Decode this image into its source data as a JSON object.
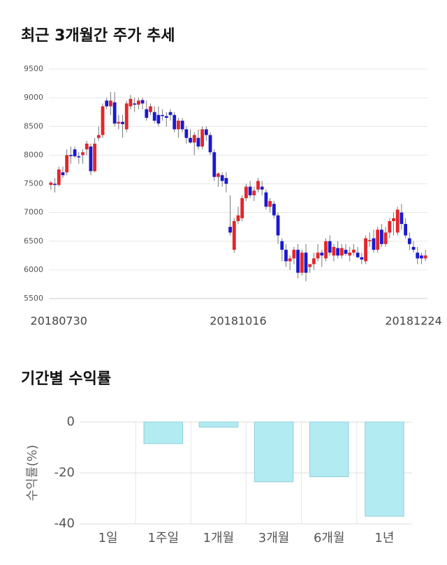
{
  "chart_data": [
    {
      "type": "candlestick",
      "title": "최근 3개월간 주가 추세",
      "categories": [
        null,
        null,
        "20180730",
        null,
        null,
        null,
        null,
        null,
        null,
        null,
        null,
        null,
        null,
        null,
        null,
        null,
        null,
        null,
        null,
        null,
        null,
        null,
        null,
        null,
        null,
        null,
        null,
        null,
        null,
        null,
        null,
        null,
        null,
        null,
        null,
        null,
        null,
        null,
        null,
        null,
        null,
        null,
        null,
        null,
        null,
        null,
        null,
        "20181016",
        null,
        null,
        null,
        null,
        null,
        null,
        null,
        null,
        null,
        null,
        null,
        null,
        null,
        null,
        null,
        null,
        null,
        null,
        null,
        null,
        null,
        null,
        null,
        null,
        null,
        null,
        null,
        null,
        null,
        null,
        null,
        null,
        null,
        null,
        null,
        null,
        null,
        null,
        null,
        null,
        null,
        null,
        null,
        "20181224",
        null,
        null,
        null
      ],
      "open": [
        7480,
        7500,
        7480,
        7700,
        7700,
        8000,
        8100,
        7980,
        8000,
        8100,
        8150,
        7720,
        8300,
        8350,
        8950,
        8850,
        8920,
        8550,
        8580,
        8450,
        8850,
        8900,
        8880,
        8960,
        8800,
        8750,
        8750,
        8700,
        8700,
        8680,
        8750,
        8700,
        8450,
        8600,
        8450,
        8300,
        8220,
        8300,
        8150,
        8450,
        8350,
        8050,
        7620,
        7650,
        7600,
        6750,
        6350,
        6850,
        6900,
        7250,
        7450,
        7300,
        7400,
        7450,
        7350,
        7100,
        7150,
        6950,
        6500,
        6350,
        6150,
        6200,
        6350,
        5950,
        6300,
        6050,
        6100,
        6200,
        6300,
        6200,
        6500,
        6250,
        6380,
        6250,
        6350,
        6250,
        6300,
        6300,
        6220,
        6150,
        6500,
        6550,
        6350,
        6700,
        6450,
        6650,
        6850,
        6650,
        7000,
        6800,
        6550,
        6400,
        6300,
        6250,
        6200
      ],
      "high": [
        7550,
        7600,
        7800,
        7800,
        8100,
        8150,
        8150,
        8050,
        8100,
        8250,
        8200,
        8300,
        8500,
        8900,
        9000,
        9100,
        9100,
        8700,
        8700,
        8950,
        9050,
        9000,
        9000,
        9000,
        8950,
        8900,
        8850,
        8850,
        8800,
        8750,
        8800,
        8750,
        8650,
        8650,
        8500,
        8450,
        8400,
        8450,
        8500,
        8500,
        8400,
        8100,
        7700,
        7700,
        7700,
        7300,
        6900,
        7100,
        7300,
        7500,
        7550,
        7450,
        7600,
        7550,
        7400,
        7250,
        7200,
        7000,
        6550,
        6450,
        6250,
        6400,
        6450,
        6350,
        6450,
        6100,
        6300,
        6450,
        6350,
        6550,
        6600,
        6450,
        6500,
        6450,
        6450,
        6400,
        6450,
        6400,
        6300,
        6600,
        6650,
        6700,
        6750,
        6800,
        6750,
        6900,
        7000,
        7100,
        7150,
        6900,
        6650,
        6500,
        6400,
        6300,
        6350
      ],
      "low": [
        7400,
        7350,
        7450,
        7600,
        7650,
        7850,
        7950,
        7850,
        7850,
        8000,
        7650,
        7700,
        8250,
        8300,
        8800,
        8700,
        8500,
        8450,
        8300,
        8400,
        8800,
        8750,
        8800,
        8800,
        8600,
        8700,
        8550,
        8500,
        8600,
        8500,
        8600,
        8400,
        8300,
        8400,
        8200,
        8200,
        8000,
        8100,
        8100,
        8250,
        8000,
        7550,
        7450,
        7450,
        7350,
        6600,
        6300,
        6800,
        6850,
        7200,
        7250,
        7200,
        7350,
        7300,
        7050,
        7000,
        6900,
        6450,
        6150,
        6050,
        6000,
        6100,
        5850,
        5900,
        5800,
        5950,
        6000,
        6150,
        6050,
        6150,
        6250,
        6150,
        6200,
        6200,
        6250,
        6150,
        6250,
        6200,
        6100,
        6100,
        6400,
        6300,
        6300,
        6400,
        6400,
        6550,
        6600,
        6600,
        6700,
        6550,
        6350,
        6300,
        6100,
        6100,
        6150
      ],
      "close": [
        7520,
        7480,
        7750,
        7650,
        8000,
        7980,
        7980,
        7960,
        8050,
        8200,
        7720,
        8200,
        8350,
        8850,
        8850,
        8950,
        8550,
        8580,
        8540,
        8900,
        8980,
        8880,
        8950,
        8900,
        8650,
        8850,
        8600,
        8550,
        8680,
        8650,
        8700,
        8450,
        8600,
        8450,
        8300,
        8220,
        8350,
        8150,
        8450,
        8350,
        8050,
        7620,
        7680,
        7550,
        7500,
        6650,
        6850,
        6950,
        7250,
        7450,
        7300,
        7380,
        7550,
        7400,
        7100,
        7200,
        6950,
        6600,
        6350,
        6150,
        6200,
        6350,
        5950,
        6300,
        5950,
        6100,
        6200,
        6300,
        6250,
        6500,
        6300,
        6400,
        6250,
        6380,
        6280,
        6300,
        6350,
        6220,
        6180,
        6550,
        6520,
        6350,
        6700,
        6450,
        6650,
        6850,
        6900,
        7050,
        6800,
        6600,
        6450,
        6350,
        6200,
        6200,
        6250
      ],
      "up_color": "#e3262a",
      "down_color": "#1a1ad0",
      "ylim": [
        5500,
        9500
      ],
      "yticks": [
        5500,
        6000,
        6500,
        7000,
        7500,
        8000,
        8500,
        9000,
        9500
      ],
      "grid": true
    },
    {
      "type": "bar",
      "title": "기간별 수익률",
      "ylabel": "수익률(%)",
      "categories": [
        "1일",
        "1주일",
        "1개월",
        "3개월",
        "6개월",
        "1년"
      ],
      "values": [
        0,
        -8.5,
        -2,
        -23.5,
        -21.5,
        -37
      ],
      "color": "#b3ebf3",
      "edge_color": "#8dcfd8",
      "ylim": [
        -40,
        0
      ],
      "yticks": [
        0,
        -20,
        -40
      ],
      "grid": true
    }
  ]
}
